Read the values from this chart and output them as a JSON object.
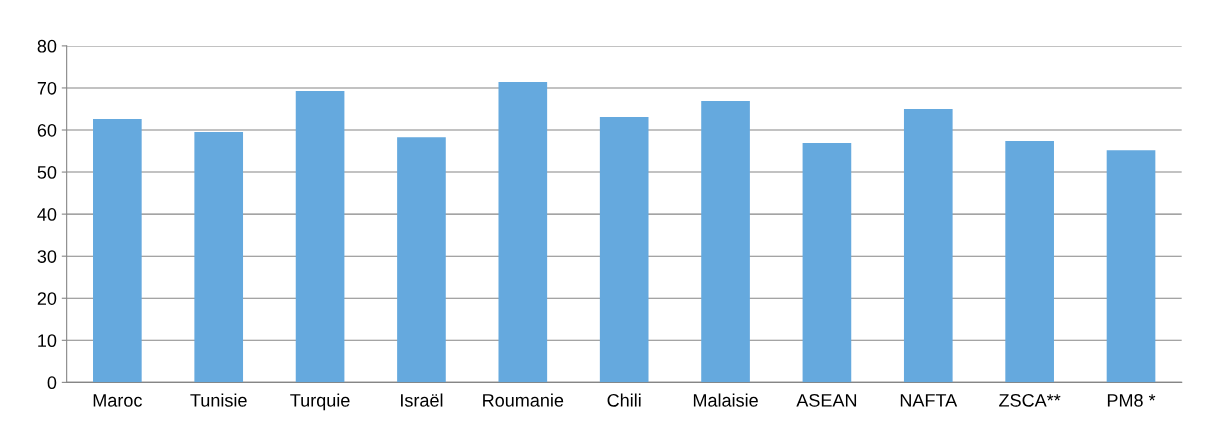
{
  "chart_data": {
    "type": "bar",
    "categories": [
      "Maroc",
      "Tunisie",
      "Turquie",
      "Israël",
      "Roumanie",
      "Chili",
      "Malaisie",
      "ASEAN",
      "NAFTA",
      "ZSCA**",
      "PM8 *"
    ],
    "values": [
      62.6,
      59.5,
      69.3,
      58.3,
      71.4,
      63.1,
      66.9,
      56.9,
      65.0,
      57.4,
      55.2
    ],
    "color": "#65a9de",
    "ylim": [
      0,
      80
    ],
    "yticks": [
      0,
      10,
      20,
      30,
      40,
      50,
      60,
      70,
      80
    ],
    "grid": "y",
    "legend": false
  }
}
